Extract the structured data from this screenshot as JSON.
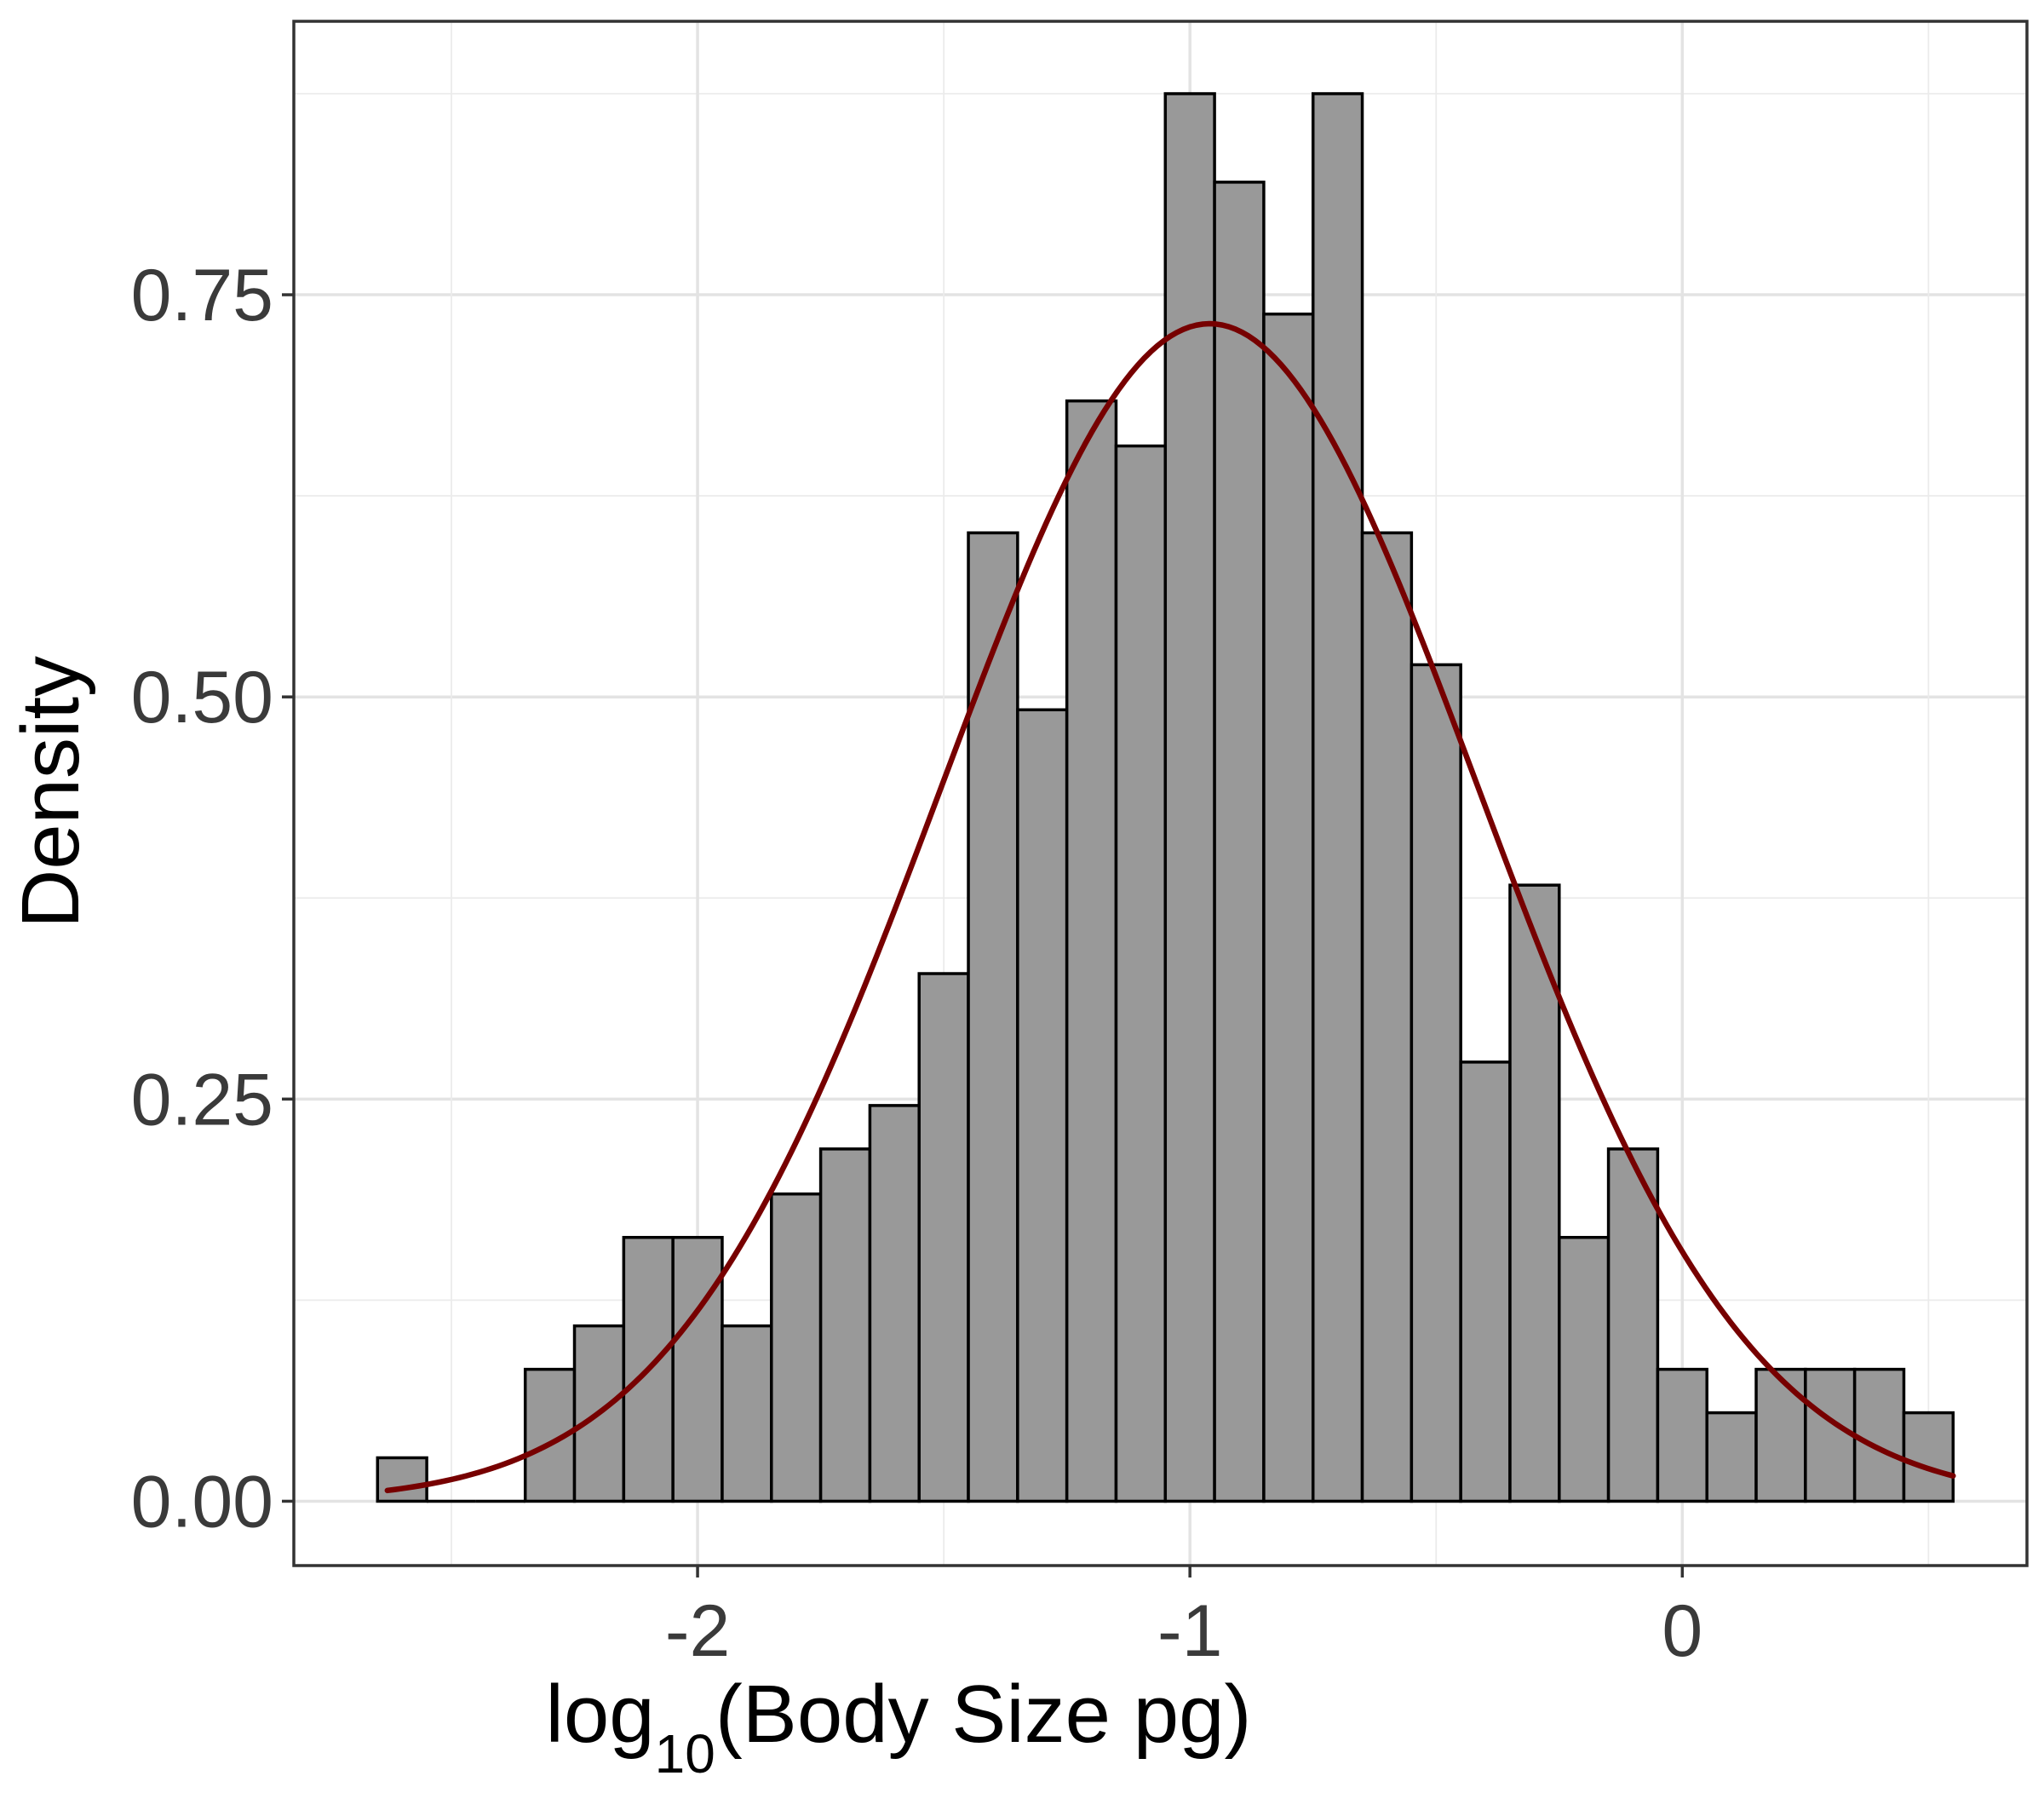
{
  "chart_data": {
    "type": "bar",
    "subtype": "histogram",
    "xlabel_prefix": "log",
    "xlabel_subscript": "10",
    "xlabel_suffix": "(Body Size pg)",
    "ylabel": "Density",
    "xlim": [
      -2.82,
      0.7
    ],
    "ylim": [
      -0.04,
      0.92
    ],
    "x_ticks": [
      -2,
      -1,
      0
    ],
    "x_tick_labels": [
      "-2",
      "-1",
      "0"
    ],
    "y_ticks": [
      0,
      0.25,
      0.5,
      0.75
    ],
    "y_tick_labels": [
      "0.00",
      "0.25",
      "0.50",
      "0.75"
    ],
    "grid": true,
    "bin_width": 0.1,
    "bins": [
      {
        "x0": -2.65,
        "x1": -2.55,
        "density": 0.027
      },
      {
        "x0": -2.55,
        "x1": -2.45,
        "density": 0.0
      },
      {
        "x0": -2.45,
        "x1": -2.35,
        "density": 0.0
      },
      {
        "x0": -2.35,
        "x1": -2.25,
        "density": 0.082
      },
      {
        "x0": -2.25,
        "x1": -2.15,
        "density": 0.109
      },
      {
        "x0": -2.15,
        "x1": -2.05,
        "density": 0.164
      },
      {
        "x0": -2.05,
        "x1": -1.95,
        "density": 0.164
      },
      {
        "x0": -1.95,
        "x1": -1.85,
        "density": 0.109
      },
      {
        "x0": -1.85,
        "x1": -1.75,
        "density": 0.191
      },
      {
        "x0": -1.75,
        "x1": -1.65,
        "density": 0.219
      },
      {
        "x0": -1.65,
        "x1": -1.55,
        "density": 0.246
      },
      {
        "x0": -1.55,
        "x1": -1.45,
        "density": 0.328
      },
      {
        "x0": -1.45,
        "x1": -1.35,
        "density": 0.602
      },
      {
        "x0": -1.35,
        "x1": -1.25,
        "density": 0.492
      },
      {
        "x0": -1.25,
        "x1": -1.15,
        "density": 0.684
      },
      {
        "x0": -1.15,
        "x1": -1.05,
        "density": 0.656
      },
      {
        "x0": -1.05,
        "x1": -0.95,
        "density": 0.875
      },
      {
        "x0": -0.95,
        "x1": -0.85,
        "density": 0.82
      },
      {
        "x0": -0.85,
        "x1": -0.75,
        "density": 0.738
      },
      {
        "x0": -0.75,
        "x1": -0.65,
        "density": 0.875
      },
      {
        "x0": -0.65,
        "x1": -0.55,
        "density": 0.602
      },
      {
        "x0": -0.55,
        "x1": -0.45,
        "density": 0.52
      },
      {
        "x0": -0.45,
        "x1": -0.35,
        "density": 0.273
      },
      {
        "x0": -0.35,
        "x1": -0.25,
        "density": 0.383
      },
      {
        "x0": -0.25,
        "x1": -0.15,
        "density": 0.164
      },
      {
        "x0": -0.15,
        "x1": -0.05,
        "density": 0.219
      },
      {
        "x0": -0.05,
        "x1": 0.05,
        "density": 0.082
      },
      {
        "x0": 0.05,
        "x1": 0.15,
        "density": 0.055
      },
      {
        "x0": 0.15,
        "x1": 0.25,
        "density": 0.082
      },
      {
        "x0": 0.25,
        "x1": 0.35,
        "density": 0.082
      },
      {
        "x0": 0.35,
        "x1": 0.45,
        "density": 0.082
      },
      {
        "x0": 0.45,
        "x1": 0.55,
        "density": 0.055
      }
    ],
    "fit_curve": {
      "type": "normal",
      "mean": -0.96,
      "sd": 0.545,
      "x_range": [
        -2.63,
        0.55
      ],
      "color": "#770000"
    },
    "bar_fill": "#999999",
    "bar_stroke": "#000000"
  }
}
